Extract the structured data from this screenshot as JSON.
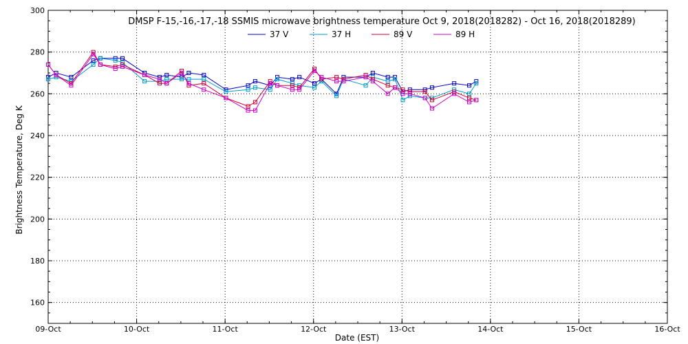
{
  "chart_data": {
    "type": "line",
    "title": "DMSP F-15,-16,-17,-18 SSMIS microwave brightness temperature Oct  9, 2018(2018282) - Oct 16, 2018(2018289)",
    "xlabel": "Date (EST)",
    "ylabel": "Brightness Temperature, Deg K",
    "xlim": [
      0,
      7
    ],
    "ylim": [
      150,
      300
    ],
    "x_unit": "days since 09-Oct 00:00",
    "grid": true,
    "x_ticks": [
      {
        "value": 0,
        "label": "09-Oct"
      },
      {
        "value": 1,
        "label": "10-Oct"
      },
      {
        "value": 2,
        "label": "11-Oct"
      },
      {
        "value": 3,
        "label": "12-Oct"
      },
      {
        "value": 4,
        "label": "13-Oct"
      },
      {
        "value": 5,
        "label": "14-Oct"
      },
      {
        "value": 6,
        "label": "15-Oct"
      },
      {
        "value": 7,
        "label": "16-Oct"
      }
    ],
    "y_ticks": [
      {
        "value": 160,
        "label": "160"
      },
      {
        "value": 180,
        "label": "180"
      },
      {
        "value": 200,
        "label": "200"
      },
      {
        "value": 220,
        "label": "220"
      },
      {
        "value": 240,
        "label": "240"
      },
      {
        "value": 260,
        "label": "260"
      },
      {
        "value": 280,
        "label": "280"
      },
      {
        "value": 300,
        "label": "300"
      }
    ],
    "series": [
      {
        "name": "37 V",
        "color": "#0000cc",
        "points": [
          [
            0.0,
            268
          ],
          [
            0.09,
            270
          ],
          [
            0.26,
            268
          ],
          [
            0.51,
            276
          ],
          [
            0.59,
            277
          ],
          [
            0.76,
            277
          ],
          [
            0.84,
            277
          ],
          [
            1.09,
            270
          ],
          [
            1.26,
            268
          ],
          [
            1.34,
            269
          ],
          [
            1.51,
            268
          ],
          [
            1.59,
            270
          ],
          [
            1.76,
            269
          ],
          [
            2.01,
            262
          ],
          [
            2.26,
            264
          ],
          [
            2.34,
            266
          ],
          [
            2.51,
            264
          ],
          [
            2.59,
            268
          ],
          [
            2.76,
            267
          ],
          [
            2.84,
            268
          ],
          [
            3.01,
            265
          ],
          [
            3.09,
            267
          ],
          [
            3.26,
            260
          ],
          [
            3.34,
            268
          ],
          [
            3.59,
            268
          ],
          [
            3.67,
            270
          ],
          [
            3.84,
            268
          ],
          [
            3.92,
            268
          ],
          [
            4.01,
            261
          ],
          [
            4.09,
            262
          ],
          [
            4.26,
            262
          ],
          [
            4.34,
            263
          ],
          [
            4.59,
            265
          ],
          [
            4.76,
            264
          ],
          [
            4.84,
            266
          ]
        ]
      },
      {
        "name": "37 H",
        "color": "#0099cc",
        "points": [
          [
            0.0,
            267
          ],
          [
            0.09,
            268
          ],
          [
            0.26,
            266
          ],
          [
            0.51,
            274
          ],
          [
            0.59,
            277
          ],
          [
            0.76,
            276
          ],
          [
            0.84,
            275
          ],
          [
            1.09,
            266
          ],
          [
            1.26,
            266
          ],
          [
            1.34,
            267
          ],
          [
            1.51,
            267
          ],
          [
            1.59,
            267
          ],
          [
            1.76,
            267
          ],
          [
            2.01,
            261
          ],
          [
            2.26,
            262
          ],
          [
            2.34,
            263
          ],
          [
            2.51,
            262
          ],
          [
            2.59,
            267
          ],
          [
            2.76,
            265
          ],
          [
            2.84,
            264
          ],
          [
            3.01,
            263
          ],
          [
            3.09,
            266
          ],
          [
            3.26,
            259
          ],
          [
            3.34,
            267
          ],
          [
            3.59,
            264
          ],
          [
            3.67,
            268
          ],
          [
            3.84,
            266
          ],
          [
            3.92,
            267
          ],
          [
            4.01,
            257
          ],
          [
            4.09,
            259
          ],
          [
            4.26,
            258
          ],
          [
            4.34,
            258
          ],
          [
            4.59,
            262
          ],
          [
            4.76,
            260
          ],
          [
            4.84,
            265
          ]
        ]
      },
      {
        "name": "89 V",
        "color": "#cc0033",
        "points": [
          [
            0.0,
            274
          ],
          [
            0.09,
            269
          ],
          [
            0.26,
            265
          ],
          [
            0.51,
            280
          ],
          [
            0.59,
            274
          ],
          [
            0.76,
            273
          ],
          [
            0.84,
            274
          ],
          [
            1.09,
            269
          ],
          [
            1.26,
            265
          ],
          [
            1.34,
            265
          ],
          [
            1.51,
            271
          ],
          [
            1.59,
            264
          ],
          [
            1.76,
            265
          ],
          [
            2.01,
            258
          ],
          [
            2.26,
            254
          ],
          [
            2.34,
            256
          ],
          [
            2.51,
            266
          ],
          [
            2.59,
            264
          ],
          [
            2.76,
            264
          ],
          [
            2.84,
            263
          ],
          [
            3.01,
            272
          ],
          [
            3.09,
            267
          ],
          [
            3.26,
            268
          ],
          [
            3.34,
            267
          ],
          [
            3.59,
            269
          ],
          [
            3.67,
            267
          ],
          [
            3.84,
            264
          ],
          [
            3.92,
            263
          ],
          [
            4.01,
            262
          ],
          [
            4.09,
            261
          ],
          [
            4.26,
            261
          ],
          [
            4.34,
            257
          ],
          [
            4.59,
            261
          ],
          [
            4.76,
            258
          ],
          [
            4.84,
            257
          ]
        ]
      },
      {
        "name": "89 H",
        "color": "#cc00cc",
        "points": [
          [
            0.0,
            274
          ],
          [
            0.09,
            269
          ],
          [
            0.26,
            264
          ],
          [
            0.51,
            279
          ],
          [
            0.59,
            274
          ],
          [
            0.76,
            272
          ],
          [
            0.84,
            273
          ],
          [
            1.09,
            269
          ],
          [
            1.26,
            267
          ],
          [
            1.34,
            265
          ],
          [
            1.51,
            270
          ],
          [
            1.59,
            265
          ],
          [
            1.76,
            262
          ],
          [
            2.01,
            258
          ],
          [
            2.26,
            252
          ],
          [
            2.34,
            252
          ],
          [
            2.51,
            265
          ],
          [
            2.59,
            264
          ],
          [
            2.76,
            262
          ],
          [
            2.84,
            262
          ],
          [
            3.01,
            271
          ],
          [
            3.09,
            268
          ],
          [
            3.26,
            266
          ],
          [
            3.34,
            266
          ],
          [
            3.59,
            268
          ],
          [
            3.67,
            266
          ],
          [
            3.84,
            260
          ],
          [
            3.92,
            263
          ],
          [
            4.01,
            260
          ],
          [
            4.09,
            260
          ],
          [
            4.26,
            258
          ],
          [
            4.34,
            253
          ],
          [
            4.59,
            260
          ],
          [
            4.76,
            256
          ],
          [
            4.84,
            257
          ]
        ]
      }
    ]
  }
}
